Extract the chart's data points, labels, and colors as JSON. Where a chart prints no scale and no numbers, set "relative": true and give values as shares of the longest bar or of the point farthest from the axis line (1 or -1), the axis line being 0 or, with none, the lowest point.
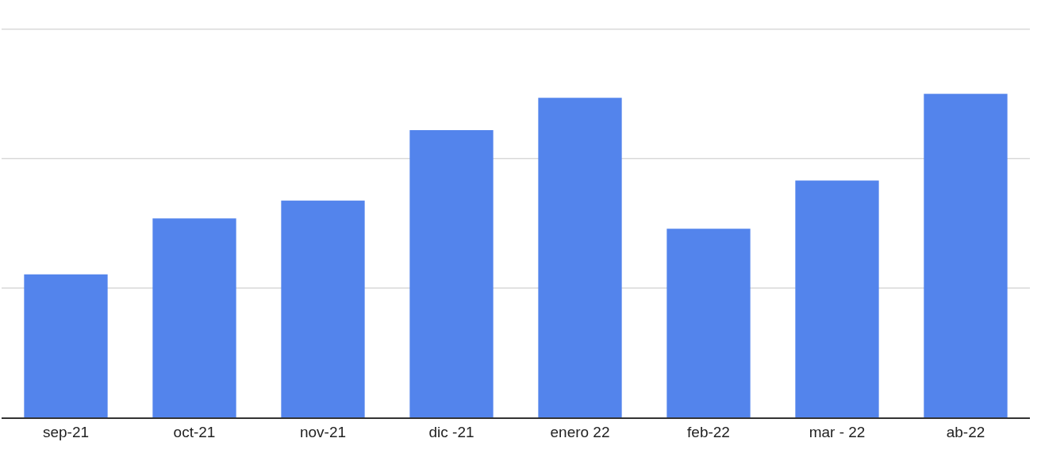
{
  "chart_data": {
    "type": "bar",
    "relative": true,
    "ref_lines": [
      {
        "axis": "y",
        "value": 0.4,
        "color": "#d9d9d9"
      },
      {
        "axis": "y",
        "value": 0.8,
        "color": "#d9d9d9"
      },
      {
        "axis": "y",
        "value": 1.2,
        "color": "#d9d9d9"
      }
    ],
    "categories": [
      "sep-21",
      "oct-21",
      "nov-21",
      "dic -21",
      "enero 22",
      "feb-22",
      "mar - 22",
      "ab-22"
    ],
    "values": [
      0.442,
      0.615,
      0.67,
      0.888,
      0.988,
      0.583,
      0.732,
      1
    ],
    "color": "#5384ec"
  }
}
